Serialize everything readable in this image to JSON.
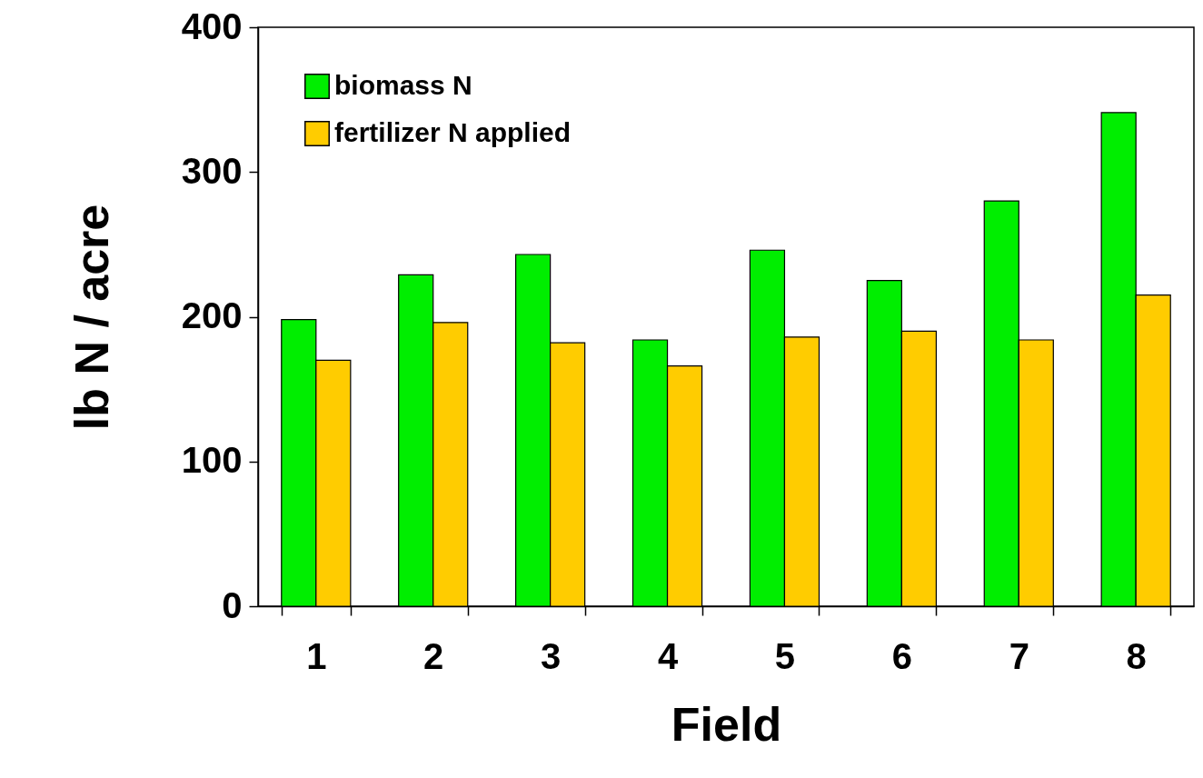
{
  "chart_data": {
    "type": "bar",
    "xlabel": "Field",
    "ylabel": "lb N / acre",
    "categories": [
      "1",
      "2",
      "3",
      "4",
      "5",
      "6",
      "7",
      "8"
    ],
    "series": [
      {
        "name": "biomass N",
        "color": "#00ee00",
        "values": [
          198,
          229,
          243,
          184,
          246,
          225,
          280,
          341
        ]
      },
      {
        "name": "fertilizer N applied",
        "color": "#ffcc00",
        "values": [
          170,
          196,
          182,
          166,
          186,
          190,
          184,
          215
        ]
      }
    ],
    "ylim": [
      0,
      400
    ],
    "yticks": [
      0,
      100,
      200,
      300,
      400
    ],
    "grid": false,
    "legend": "top left"
  }
}
